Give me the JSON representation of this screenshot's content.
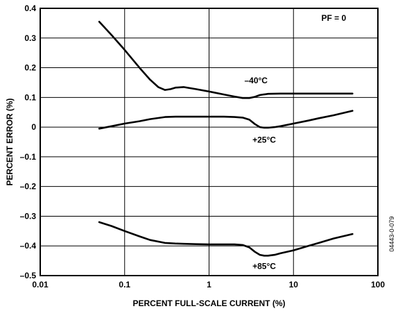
{
  "chart_data": {
    "type": "line",
    "xlabel": "PERCENT FULL-SCALE CURRENT (%)",
    "ylabel": "PERCENT ERROR (%)",
    "xscale": "log",
    "xlim": [
      0.01,
      100
    ],
    "ylim": [
      -0.5,
      0.4
    ],
    "grid": true,
    "x_ticks": [
      0.01,
      0.1,
      1,
      10,
      100
    ],
    "x_tick_labels": [
      "0.01",
      "0.1",
      "1",
      "10",
      "100"
    ],
    "y_ticks": [
      0.4,
      0.3,
      0.2,
      0.1,
      0,
      -0.1,
      -0.2,
      -0.3,
      -0.4,
      -0.5
    ],
    "y_tick_labels": [
      "0.4",
      "0.3",
      "0.2",
      "0.1",
      "0",
      "–0.1",
      "–0.2",
      "–0.3",
      "–0.4",
      "–0.5"
    ],
    "annotation": "PF = 0",
    "reference": "04443-0-079",
    "series": [
      {
        "name": "–40°C",
        "x": [
          0.05,
          0.07,
          0.1,
          0.15,
          0.2,
          0.25,
          0.3,
          0.35,
          0.4,
          0.5,
          0.7,
          1.0,
          1.5,
          2.0,
          2.5,
          3.0,
          3.5,
          4.0,
          5.0,
          7.0,
          10,
          20,
          50
        ],
        "y": [
          0.355,
          0.31,
          0.26,
          0.2,
          0.16,
          0.135,
          0.125,
          0.128,
          0.133,
          0.135,
          0.128,
          0.12,
          0.11,
          0.103,
          0.098,
          0.098,
          0.102,
          0.108,
          0.112,
          0.113,
          0.113,
          0.113,
          0.113
        ]
      },
      {
        "name": "+25°C",
        "x": [
          0.05,
          0.07,
          0.1,
          0.15,
          0.2,
          0.3,
          0.4,
          0.5,
          0.7,
          1.0,
          1.5,
          2.0,
          2.5,
          3.0,
          3.5,
          4.0,
          4.5,
          5.0,
          6.0,
          7.0,
          10,
          15,
          20,
          30,
          50
        ],
        "y": [
          -0.005,
          0.003,
          0.012,
          0.02,
          0.027,
          0.034,
          0.035,
          0.035,
          0.035,
          0.035,
          0.035,
          0.034,
          0.032,
          0.025,
          0.01,
          0.0,
          -0.002,
          -0.002,
          0.0,
          0.003,
          0.012,
          0.022,
          0.03,
          0.04,
          0.055
        ]
      },
      {
        "name": "+85°C",
        "x": [
          0.05,
          0.07,
          0.1,
          0.15,
          0.2,
          0.3,
          0.4,
          0.5,
          0.7,
          1.0,
          1.5,
          2.0,
          2.5,
          3.0,
          3.5,
          4.0,
          4.5,
          5.0,
          6.0,
          7.0,
          10,
          15,
          20,
          30,
          50
        ],
        "y": [
          -0.32,
          -0.333,
          -0.35,
          -0.368,
          -0.38,
          -0.39,
          -0.392,
          -0.393,
          -0.394,
          -0.395,
          -0.395,
          -0.395,
          -0.397,
          -0.405,
          -0.42,
          -0.43,
          -0.433,
          -0.433,
          -0.43,
          -0.425,
          -0.415,
          -0.4,
          -0.39,
          -0.375,
          -0.36
        ]
      }
    ]
  }
}
